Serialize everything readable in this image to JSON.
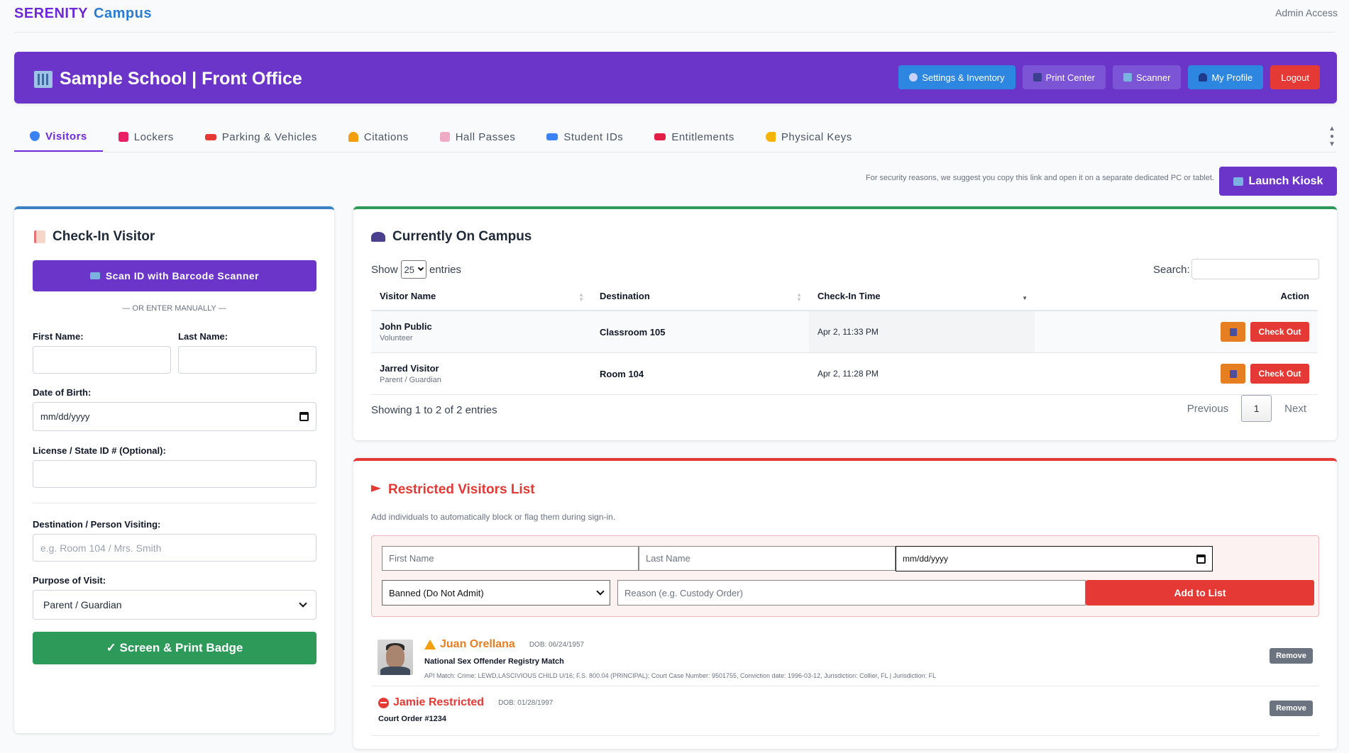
{
  "brand": {
    "part1": "SERENITY",
    "part2": "Campus"
  },
  "admin_label": "Admin Access",
  "header": {
    "title": "Sample School | Front Office",
    "buttons": {
      "settings": "Settings & Inventory",
      "print": "Print Center",
      "scanner": "Scanner",
      "profile": "My Profile",
      "logout": "Logout"
    }
  },
  "tabs": [
    {
      "label": "Visitors",
      "icon": "shield-icon",
      "color": "#3b82f6"
    },
    {
      "label": "Lockers",
      "icon": "lock-icon",
      "color": "#e91e63"
    },
    {
      "label": "Parking & Vehicles",
      "icon": "car-icon",
      "color": "#e53935"
    },
    {
      "label": "Citations",
      "icon": "siren-icon",
      "color": "#f59e0b"
    },
    {
      "label": "Hall Passes",
      "icon": "ticket-icon",
      "color": "#ec4899"
    },
    {
      "label": "Student IDs",
      "icon": "id-card-icon",
      "color": "#3b82f6"
    },
    {
      "label": "Entitlements",
      "icon": "ticket-icon",
      "color": "#e11d48"
    },
    {
      "label": "Physical Keys",
      "icon": "key-icon",
      "color": "#f5b400"
    }
  ],
  "kiosk": {
    "note": "For security reasons, we suggest you copy this link and open it on a separate dedicated PC or tablet.",
    "button": "Launch Kiosk"
  },
  "checkin": {
    "title": "Check-In Visitor",
    "scan_button": "Scan ID with Barcode Scanner",
    "or_manual": "— OR ENTER MANUALLY —",
    "first_name_label": "First Name:",
    "last_name_label": "Last Name:",
    "dob_label": "Date of Birth:",
    "dob_value": "mm/dd/yyyy",
    "license_label": "License / State ID # (Optional):",
    "destination_label": "Destination / Person Visiting:",
    "destination_placeholder": "e.g. Room 104 / Mrs. Smith",
    "purpose_label": "Purpose of Visit:",
    "purpose_value": "Parent / Guardian",
    "submit": "✓ Screen & Print Badge"
  },
  "campus": {
    "title": "Currently On Campus",
    "show": "Show",
    "entries_value": "25",
    "entries": "entries",
    "search_label": "Search:",
    "columns": [
      "Visitor Name",
      "Destination",
      "Check-In Time",
      "Action"
    ],
    "rows": [
      {
        "name": "John Public",
        "type": "Volunteer",
        "destination": "Classroom 105",
        "time": "Apr 2, 11:33 PM"
      },
      {
        "name": "Jarred Visitor",
        "type": "Parent / Guardian",
        "destination": "Room 104",
        "time": "Apr 2, 11:28 PM"
      }
    ],
    "checkout_label": "Check Out",
    "showing": "Showing 1 to 2 of 2 entries",
    "previous": "Previous",
    "page": "1",
    "next": "Next"
  },
  "restricted": {
    "title": "Restricted Visitors List",
    "subtitle": "Add individuals to automatically block or flag them during sign-in.",
    "first_placeholder": "First Name",
    "last_placeholder": "Last Name",
    "dob_value": "mm/dd/yyyy",
    "type_value": "Banned (Do Not Admit)",
    "reason_placeholder": "Reason (e.g. Custody Order)",
    "add_button": "Add to List",
    "remove_label": "Remove",
    "entries": [
      {
        "name": "Juan Orellana",
        "dob": "DOB: 06/24/1957",
        "reason": "National Sex Offender Registry Match",
        "details": "API Match: Crime: LEWD,LASCIVIOUS CHILD U/16; F.S. 800.04 (PRINCIPAL); Court Case Number: 9501755, Conviction date: 1996-03-12, Jurisdiction: Collier, FL | Jurisdiction: FL",
        "color": "#e67e22"
      },
      {
        "name": "Jamie Restricted",
        "dob": "DOB: 01/28/1997",
        "reason": "Court Order #1234",
        "color": "#e53935"
      }
    ]
  },
  "colors": {
    "primary": "#6a35c8",
    "success": "#2e9a59",
    "danger": "#e53935",
    "warning": "#e67e22",
    "info": "#2d86df"
  }
}
